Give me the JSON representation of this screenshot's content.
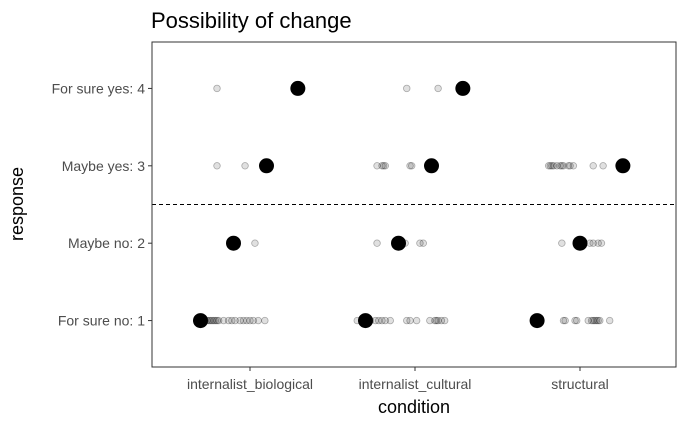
{
  "chart_data": {
    "type": "scatter",
    "title": "Possibility of change",
    "xlabel": "condition",
    "ylabel": "response",
    "categories": [
      "internalist_biological",
      "internalist_cultural",
      "structural"
    ],
    "y_ticks": [
      {
        "value": 1,
        "label": "For sure no: 1"
      },
      {
        "value": 2,
        "label": "Maybe no: 2"
      },
      {
        "value": 3,
        "label": "Maybe yes: 3"
      },
      {
        "value": 4,
        "label": "For sure yes: 4"
      }
    ],
    "ylim": [
      0.4,
      4.6
    ],
    "grid": false,
    "reference_line": {
      "y": 2.5,
      "style": "dashed"
    },
    "colors": {
      "raw_points": "#000000",
      "summary_points": "#000000"
    },
    "raw_points": [
      {
        "x": 0.8,
        "y": 4
      },
      {
        "x": 0.8,
        "y": 3
      },
      {
        "x": 0.97,
        "y": 3
      },
      {
        "x": 1.03,
        "y": 2
      },
      {
        "x": 0.7,
        "y": 1
      },
      {
        "x": 0.72,
        "y": 1
      },
      {
        "x": 0.73,
        "y": 1
      },
      {
        "x": 0.74,
        "y": 1
      },
      {
        "x": 0.75,
        "y": 1
      },
      {
        "x": 0.76,
        "y": 1
      },
      {
        "x": 0.77,
        "y": 1
      },
      {
        "x": 0.78,
        "y": 1
      },
      {
        "x": 0.79,
        "y": 1
      },
      {
        "x": 0.8,
        "y": 1
      },
      {
        "x": 0.81,
        "y": 1
      },
      {
        "x": 0.84,
        "y": 1
      },
      {
        "x": 0.87,
        "y": 1
      },
      {
        "x": 0.89,
        "y": 1
      },
      {
        "x": 0.91,
        "y": 1
      },
      {
        "x": 0.94,
        "y": 1
      },
      {
        "x": 0.96,
        "y": 1
      },
      {
        "x": 0.98,
        "y": 1
      },
      {
        "x": 1.0,
        "y": 1
      },
      {
        "x": 1.02,
        "y": 1
      },
      {
        "x": 1.05,
        "y": 1
      },
      {
        "x": 1.09,
        "y": 1
      },
      {
        "x": 1.95,
        "y": 4
      },
      {
        "x": 2.14,
        "y": 4
      },
      {
        "x": 1.77,
        "y": 3
      },
      {
        "x": 1.8,
        "y": 3
      },
      {
        "x": 1.81,
        "y": 3
      },
      {
        "x": 1.82,
        "y": 3
      },
      {
        "x": 1.97,
        "y": 3
      },
      {
        "x": 1.98,
        "y": 3
      },
      {
        "x": 2.1,
        "y": 3
      },
      {
        "x": 1.77,
        "y": 2
      },
      {
        "x": 1.94,
        "y": 2
      },
      {
        "x": 2.03,
        "y": 2
      },
      {
        "x": 2.05,
        "y": 2
      },
      {
        "x": 1.65,
        "y": 1
      },
      {
        "x": 1.73,
        "y": 1
      },
      {
        "x": 1.76,
        "y": 1
      },
      {
        "x": 1.78,
        "y": 1
      },
      {
        "x": 1.8,
        "y": 1
      },
      {
        "x": 1.82,
        "y": 1
      },
      {
        "x": 1.85,
        "y": 1
      },
      {
        "x": 1.95,
        "y": 1
      },
      {
        "x": 1.97,
        "y": 1
      },
      {
        "x": 2.01,
        "y": 1
      },
      {
        "x": 2.09,
        "y": 1
      },
      {
        "x": 2.12,
        "y": 1
      },
      {
        "x": 2.13,
        "y": 1
      },
      {
        "x": 2.14,
        "y": 1
      },
      {
        "x": 2.16,
        "y": 1
      },
      {
        "x": 2.18,
        "y": 1
      },
      {
        "x": 2.81,
        "y": 3
      },
      {
        "x": 2.82,
        "y": 3
      },
      {
        "x": 2.83,
        "y": 3
      },
      {
        "x": 2.84,
        "y": 3
      },
      {
        "x": 2.86,
        "y": 3
      },
      {
        "x": 2.88,
        "y": 3
      },
      {
        "x": 2.89,
        "y": 3
      },
      {
        "x": 2.9,
        "y": 3
      },
      {
        "x": 2.93,
        "y": 3
      },
      {
        "x": 2.94,
        "y": 3
      },
      {
        "x": 2.96,
        "y": 3
      },
      {
        "x": 3.08,
        "y": 3
      },
      {
        "x": 3.14,
        "y": 3
      },
      {
        "x": 2.89,
        "y": 2
      },
      {
        "x": 3.02,
        "y": 2
      },
      {
        "x": 3.06,
        "y": 2
      },
      {
        "x": 3.08,
        "y": 2
      },
      {
        "x": 3.11,
        "y": 2
      },
      {
        "x": 3.13,
        "y": 2
      },
      {
        "x": 2.9,
        "y": 1
      },
      {
        "x": 2.91,
        "y": 1
      },
      {
        "x": 2.97,
        "y": 1
      },
      {
        "x": 2.98,
        "y": 1
      },
      {
        "x": 3.05,
        "y": 1
      },
      {
        "x": 3.07,
        "y": 1
      },
      {
        "x": 3.08,
        "y": 1
      },
      {
        "x": 3.09,
        "y": 1
      },
      {
        "x": 3.1,
        "y": 1
      },
      {
        "x": 3.11,
        "y": 1
      },
      {
        "x": 3.12,
        "y": 1
      },
      {
        "x": 3.18,
        "y": 1
      }
    ],
    "summary_points": [
      {
        "x": 1.29,
        "y": 4
      },
      {
        "x": 1.1,
        "y": 3
      },
      {
        "x": 0.9,
        "y": 2
      },
      {
        "x": 0.7,
        "y": 1
      },
      {
        "x": 2.29,
        "y": 4
      },
      {
        "x": 2.1,
        "y": 3
      },
      {
        "x": 1.9,
        "y": 2
      },
      {
        "x": 1.7,
        "y": 1
      },
      {
        "x": 3.26,
        "y": 3
      },
      {
        "x": 3.0,
        "y": 2
      },
      {
        "x": 2.74,
        "y": 1
      }
    ]
  }
}
